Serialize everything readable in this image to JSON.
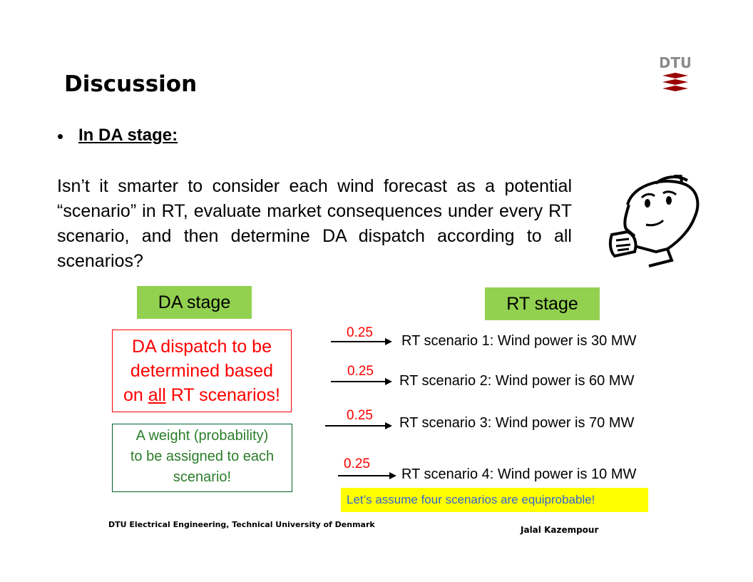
{
  "slide": {
    "title": "Discussion",
    "bullet": "In DA stage:",
    "paragraph": "Isn’t it smarter to consider each wind forecast as a potential “scenario” in RT, evaluate market consequences under every RT scenario, and then determine DA dispatch according to all scenarios?",
    "logo_text": "DTU"
  },
  "diagram": {
    "da_stage_label": "DA stage",
    "rt_stage_label": "RT stage",
    "dispatch_box": {
      "line1": "DA dispatch to be",
      "line2": "determined based",
      "line3_pre": "on ",
      "line3_underlined": "all",
      "line3_post": " RT scenarios!"
    },
    "weight_box": {
      "line1": "A weight (probability)",
      "line2": "to be assigned to each",
      "line3": "scenario!"
    },
    "scenarios": [
      {
        "probability": "0.25",
        "label": "RT scenario 1: Wind power is 30 MW"
      },
      {
        "probability": "0.25",
        "label": "RT scenario 2: Wind power is 60 MW"
      },
      {
        "probability": "0.25",
        "label": "RT scenario 3: Wind power is 70 MW"
      },
      {
        "probability": "0.25",
        "label": "RT scenario 4: Wind power is 10 MW"
      }
    ],
    "note": "Let’s assume four scenarios are equiprobable!"
  },
  "footer": {
    "left": "DTU Electrical Engineering, Technical University of Denmark",
    "right": "Jalal Kazempour"
  },
  "colors": {
    "stage_green": "#92d050",
    "dispatch_red": "#ff0000",
    "weight_green": "#2a7d2a",
    "note_yellow": "#ffff00",
    "note_text_blue": "#3366cc",
    "logo_red": "#990000"
  }
}
